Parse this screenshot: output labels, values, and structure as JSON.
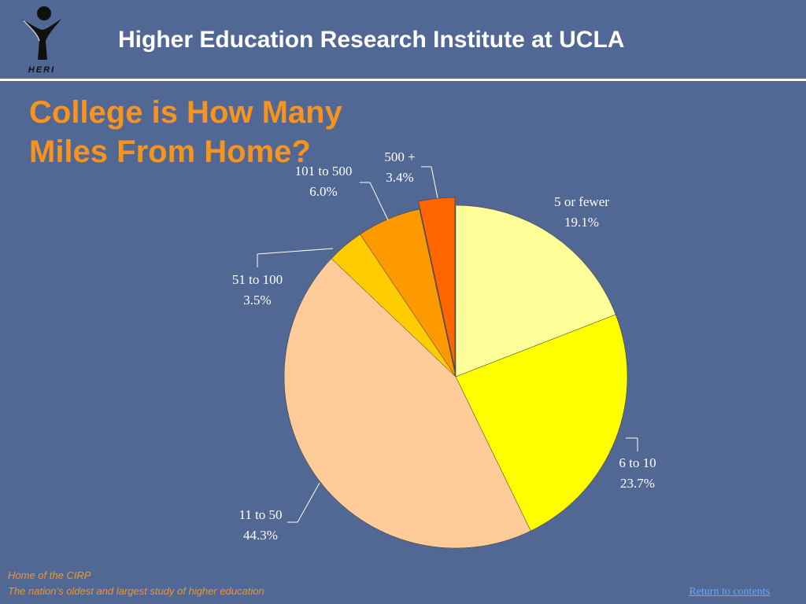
{
  "header": {
    "title": "Higher Education Research Institute at UCLA",
    "logo_text": "HERI"
  },
  "slide": {
    "title_line1": "College is How Many",
    "title_line2": "Miles From Home?"
  },
  "chart_data": {
    "type": "pie",
    "title": "College is How Many Miles From Home?",
    "slices": [
      {
        "label": "5 or fewer",
        "value": 19.1,
        "value_label": "19.1%",
        "color": "#ffff99"
      },
      {
        "label": "6 to 10",
        "value": 23.7,
        "value_label": "23.7%",
        "color": "#ffff00"
      },
      {
        "label": "11 to 50",
        "value": 44.3,
        "value_label": "44.3%",
        "color": "#ffcc99"
      },
      {
        "label": "51 to 100",
        "value": 3.5,
        "value_label": "3.5%",
        "color": "#ffcc00"
      },
      {
        "label": "101 to 500",
        "value": 6.0,
        "value_label": "6.0%",
        "color": "#ff9900"
      },
      {
        "label": "500 +",
        "value": 3.4,
        "value_label": "3.4%",
        "color": "#ff6600",
        "exploded": true
      }
    ],
    "legend": "none"
  },
  "footer": {
    "line1": "Home of the CIRP",
    "line2": "The nation’s oldest and largest study of higher education",
    "return_link": "Return to contents"
  }
}
